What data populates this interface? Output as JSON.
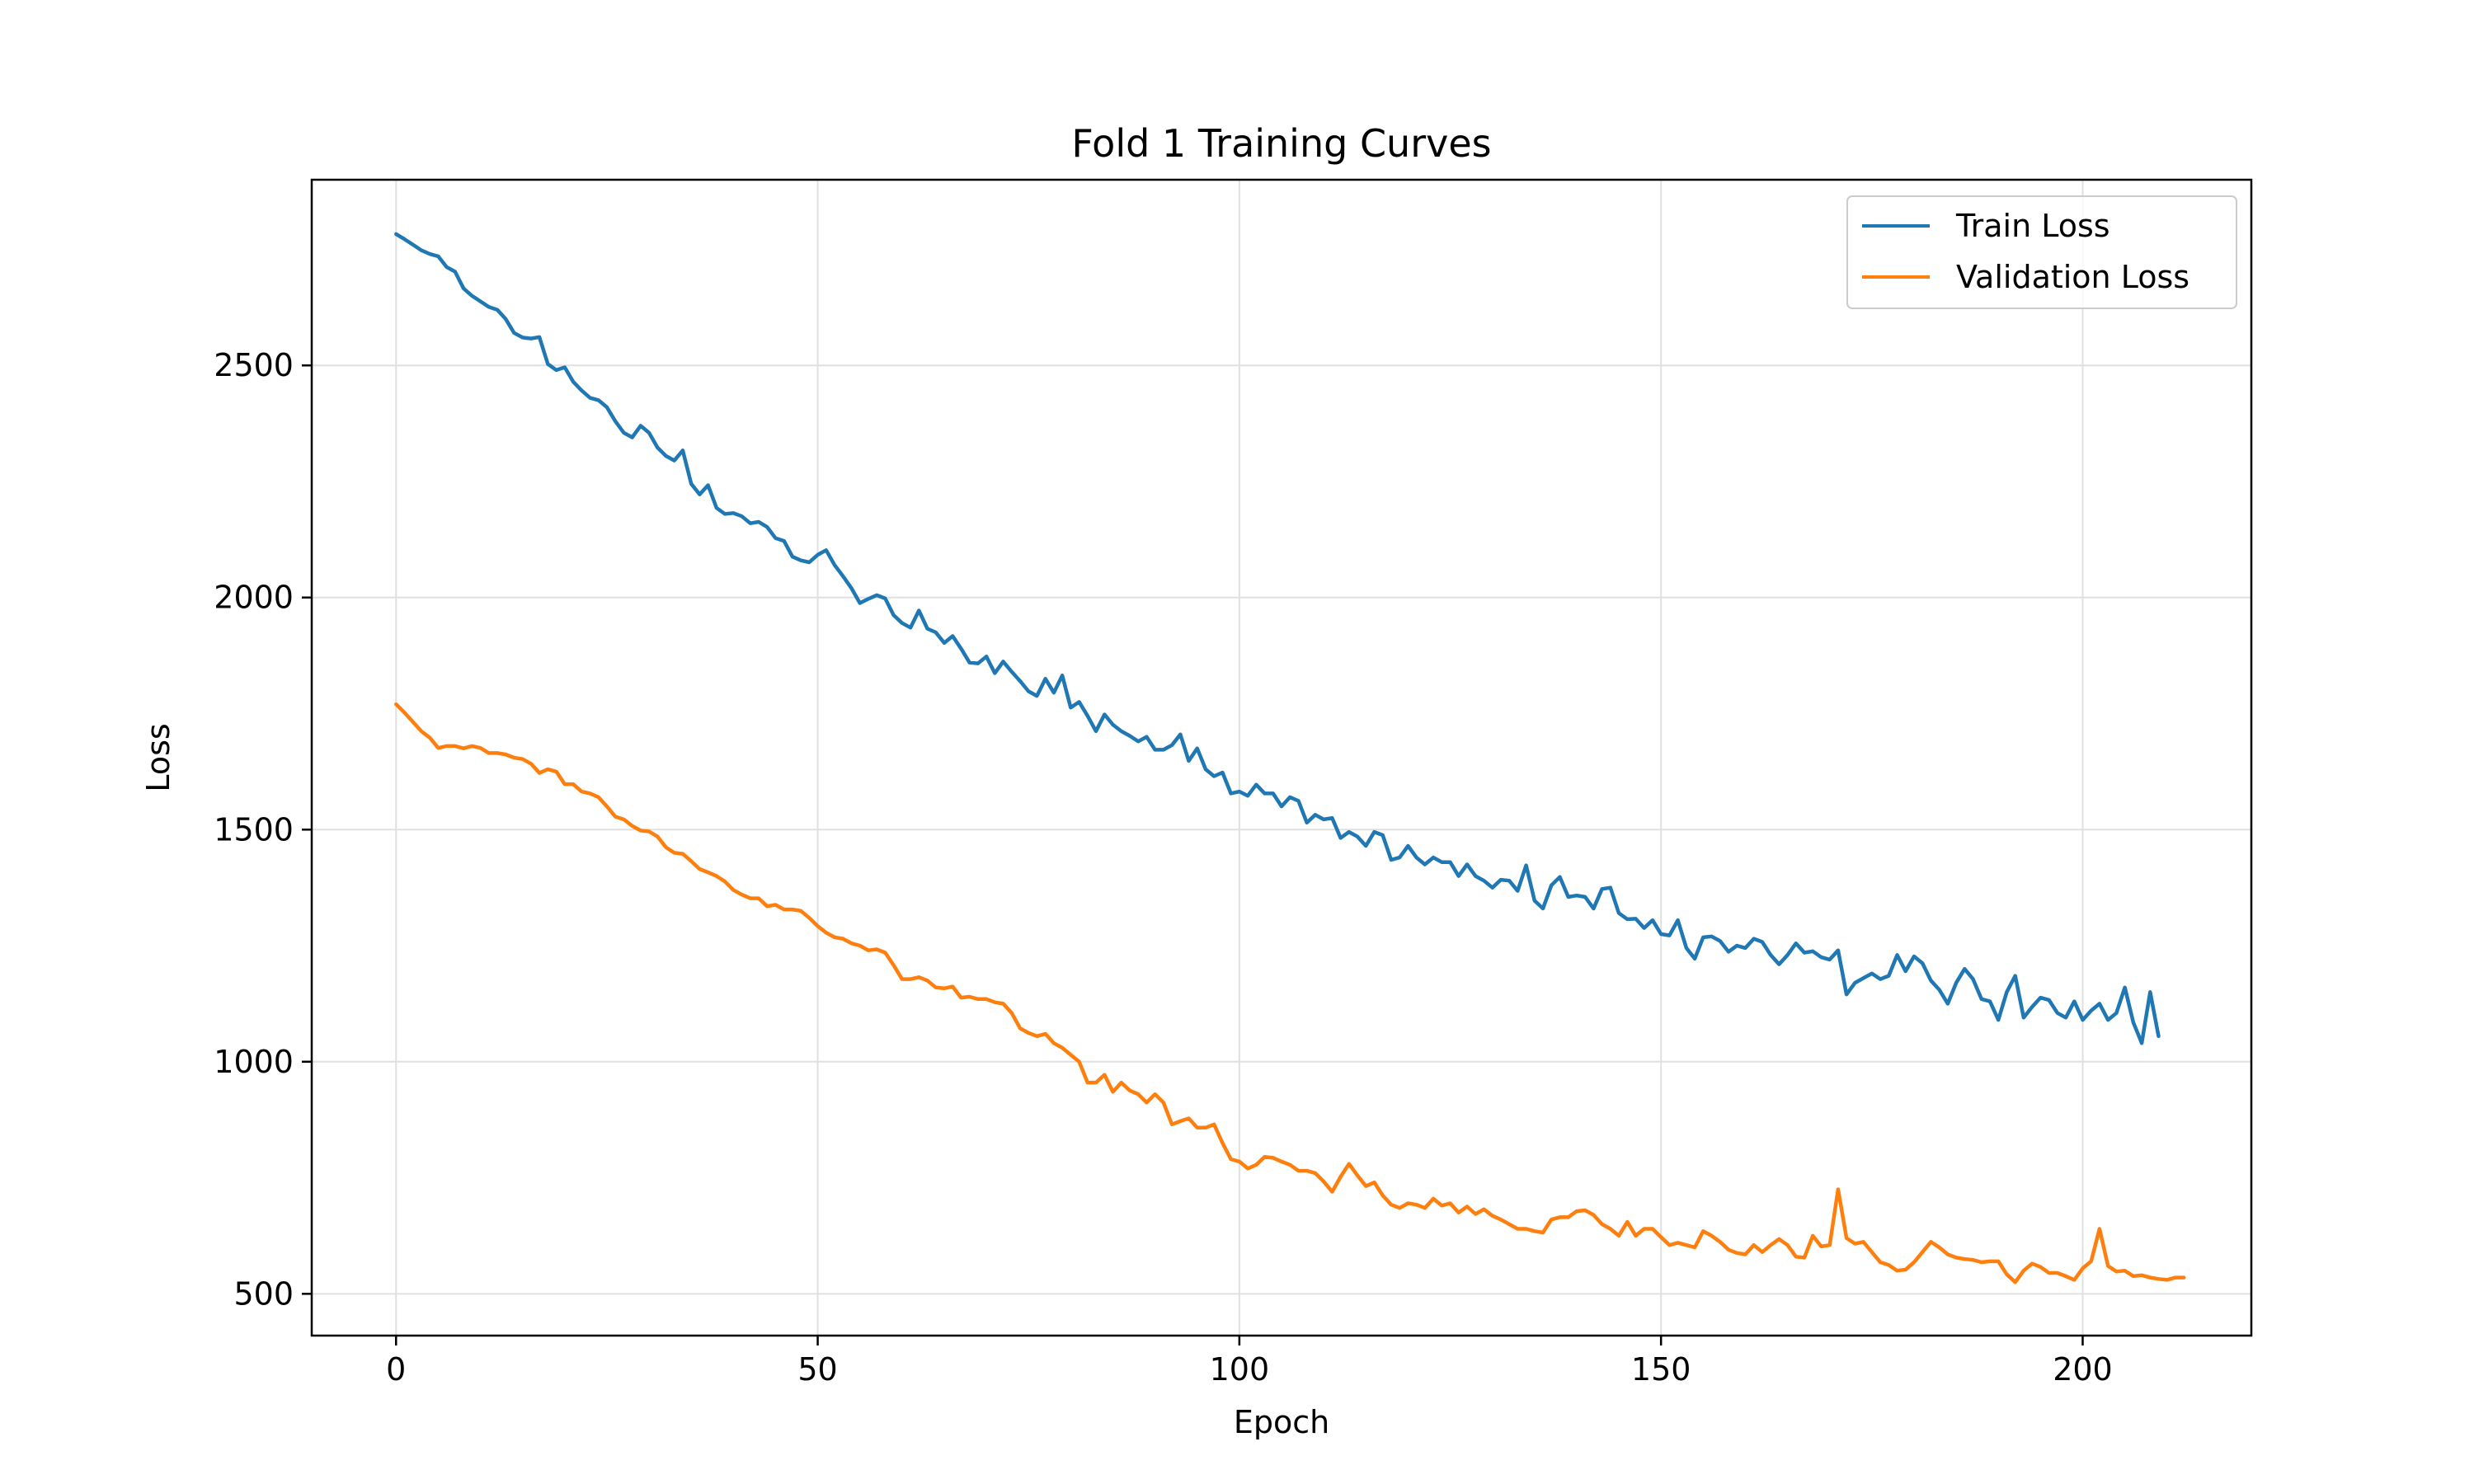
{
  "chart_data": {
    "type": "line",
    "title": "Fold 1 Training Curves",
    "xlabel": "Epoch",
    "ylabel": "Loss",
    "xlim": [
      -10,
      220
    ],
    "ylim": [
      410,
      2900
    ],
    "xticks": [
      0,
      50,
      100,
      150,
      200
    ],
    "yticks": [
      500,
      1000,
      1500,
      2000,
      2500
    ],
    "grid": true,
    "legend_position": "top-right",
    "colors": {
      "train": "#1f77b4",
      "validation": "#ff7f0e",
      "grid": "#e0e0e0",
      "axes": "#000000"
    },
    "series": [
      {
        "name": "Train Loss",
        "color": "#1f77b4",
        "values": [
          2783,
          2772,
          2760,
          2748,
          2740,
          2735,
          2712,
          2702,
          2666,
          2650,
          2638,
          2626,
          2620,
          2600,
          2570,
          2560,
          2558,
          2561,
          2503,
          2490,
          2496,
          2465,
          2446,
          2430,
          2425,
          2410,
          2380,
          2355,
          2345,
          2370,
          2355,
          2323,
          2305,
          2295,
          2317,
          2245,
          2222,
          2242,
          2193,
          2180,
          2182,
          2175,
          2160,
          2163,
          2152,
          2128,
          2122,
          2088,
          2080,
          2076,
          2092,
          2102,
          2070,
          2046,
          2020,
          1988,
          1997,
          2005,
          1998,
          1962,
          1945,
          1935,
          1972,
          1933,
          1925,
          1902,
          1917,
          1890,
          1860,
          1858,
          1873,
          1837,
          1862,
          1840,
          1820,
          1798,
          1788,
          1825,
          1795,
          1832,
          1763,
          1775,
          1745,
          1712,
          1748,
          1726,
          1712,
          1702,
          1690,
          1700,
          1672,
          1672,
          1682,
          1705,
          1648,
          1675,
          1630,
          1615,
          1623,
          1578,
          1582,
          1573,
          1597,
          1578,
          1578,
          1550,
          1570,
          1562,
          1515,
          1532,
          1522,
          1525,
          1482,
          1495,
          1485,
          1465,
          1495,
          1488,
          1435,
          1440,
          1465,
          1440,
          1425,
          1440,
          1430,
          1430,
          1400,
          1425,
          1400,
          1390,
          1375,
          1392,
          1390,
          1368,
          1423,
          1347,
          1330,
          1380,
          1398,
          1355,
          1358,
          1355,
          1330,
          1372,
          1375,
          1320,
          1307,
          1308,
          1288,
          1305,
          1275,
          1272,
          1305,
          1245,
          1222,
          1268,
          1270,
          1260,
          1237,
          1250,
          1245,
          1265,
          1258,
          1230,
          1210,
          1230,
          1255,
          1235,
          1238,
          1225,
          1220,
          1240,
          1145,
          1170,
          1180,
          1190,
          1178,
          1185,
          1230,
          1195,
          1227,
          1212,
          1175,
          1155,
          1125,
          1170,
          1200,
          1178,
          1135,
          1130,
          1090,
          1150,
          1185,
          1095,
          1118,
          1138,
          1133,
          1105,
          1095,
          1130,
          1090,
          1110,
          1125,
          1090,
          1105,
          1160,
          1085,
          1040,
          1150,
          1055
        ]
      },
      {
        "name": "Validation Loss",
        "color": "#ff7f0e",
        "values": [
          1770,
          1752,
          1732,
          1712,
          1698,
          1676,
          1680,
          1680,
          1675,
          1680,
          1676,
          1665,
          1665,
          1662,
          1655,
          1652,
          1642,
          1622,
          1630,
          1625,
          1598,
          1598,
          1582,
          1578,
          1570,
          1550,
          1528,
          1522,
          1508,
          1498,
          1496,
          1485,
          1462,
          1450,
          1448,
          1432,
          1415,
          1408,
          1400,
          1388,
          1370,
          1360,
          1352,
          1352,
          1335,
          1338,
          1328,
          1328,
          1325,
          1310,
          1292,
          1278,
          1268,
          1265,
          1255,
          1250,
          1240,
          1242,
          1235,
          1208,
          1178,
          1178,
          1182,
          1175,
          1160,
          1158,
          1162,
          1138,
          1140,
          1135,
          1135,
          1128,
          1125,
          1105,
          1072,
          1062,
          1055,
          1060,
          1040,
          1030,
          1015,
          1000,
          955,
          955,
          972,
          935,
          955,
          938,
          930,
          912,
          930,
          912,
          865,
          872,
          878,
          858,
          858,
          865,
          825,
          790,
          785,
          770,
          778,
          795,
          793,
          785,
          778,
          765,
          765,
          760,
          742,
          720,
          752,
          780,
          755,
          732,
          740,
          712,
          692,
          685,
          695,
          692,
          685,
          705,
          690,
          695,
          675,
          688,
          672,
          682,
          668,
          660,
          650,
          640,
          640,
          635,
          632,
          660,
          665,
          665,
          678,
          680,
          670,
          650,
          640,
          625,
          655,
          625,
          640,
          640,
          622,
          605,
          610,
          605,
          600,
          635,
          625,
          612,
          595,
          588,
          585,
          605,
          590,
          605,
          618,
          605,
          580,
          578,
          625,
          602,
          605,
          725,
          620,
          608,
          612,
          590,
          568,
          562,
          550,
          552,
          568,
          590,
          612,
          600,
          585,
          578,
          575,
          573,
          568,
          570,
          570,
          542,
          525,
          550,
          565,
          558,
          545,
          545,
          538,
          530,
          555,
          570,
          640,
          560,
          548,
          550,
          538,
          540,
          535,
          532,
          530,
          535,
          535
        ]
      }
    ]
  }
}
